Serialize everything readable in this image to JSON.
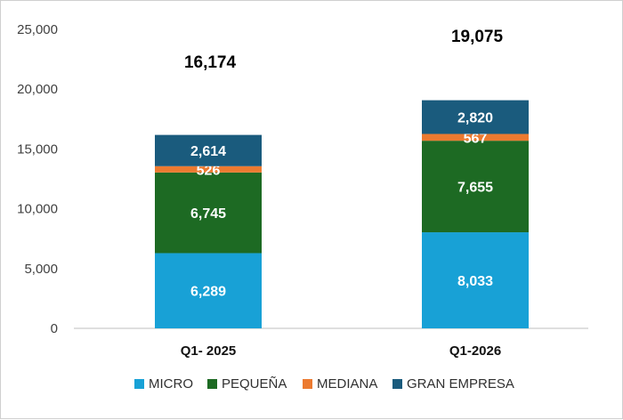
{
  "chart_data": {
    "type": "bar",
    "stacked": true,
    "categories": [
      "Q1- 2025",
      "Q1-2026"
    ],
    "series": [
      {
        "name": "MICRO",
        "color": "#18a1d6",
        "values": [
          6289,
          8033
        ],
        "labels": [
          "6,289",
          "8,033"
        ]
      },
      {
        "name": "PEQUEÑA",
        "color": "#1d6a23",
        "values": [
          6745,
          7655
        ],
        "labels": [
          "6,745",
          "7,655"
        ]
      },
      {
        "name": "MEDIANA",
        "color": "#ec7a30",
        "values": [
          526,
          567
        ],
        "labels": [
          "526",
          "567"
        ]
      },
      {
        "name": "GRAN EMPRESA",
        "color": "#1a5b7d",
        "values": [
          2614,
          2820
        ],
        "labels": [
          "2,614",
          "2,820"
        ]
      }
    ],
    "totals": [
      16174,
      19075
    ],
    "total_labels": [
      "16,174",
      "19,075"
    ],
    "ylim": [
      0,
      25000
    ],
    "yticks": [
      0,
      5000,
      10000,
      15000,
      20000,
      25000
    ],
    "ytick_labels": [
      "0",
      "5,000",
      "10,000",
      "15,000",
      "20,000",
      "25,000"
    ],
    "grid": false,
    "legend_position": "bottom",
    "title": "",
    "xlabel": "",
    "ylabel": ""
  }
}
